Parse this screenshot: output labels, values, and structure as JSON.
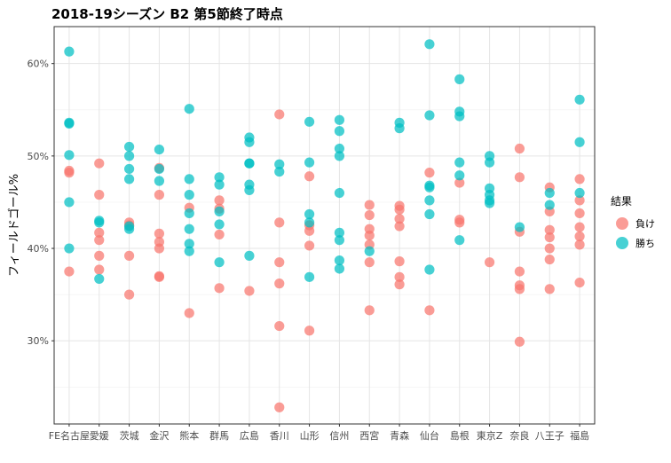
{
  "chart_data": {
    "type": "scatter",
    "title": "2018-19シーズン B2 第5節終了時点",
    "xlabel": "",
    "ylabel": "フィールドゴール%",
    "y_ticks": [
      30,
      40,
      50,
      60
    ],
    "y_tick_labels": [
      "30%",
      "40%",
      "50%",
      "60%"
    ],
    "ylim": [
      21,
      64
    ],
    "grid": true,
    "legend_position": "right",
    "legend_title": "結果",
    "categories": [
      "FE名古屋",
      "愛媛",
      "茨城",
      "金沢",
      "熊本",
      "群馬",
      "広島",
      "香川",
      "山形",
      "信州",
      "西宮",
      "青森",
      "仙台",
      "島根",
      "東京Z",
      "奈良",
      "八王子",
      "福島"
    ],
    "series": [
      {
        "name": "負け",
        "color": "#F8766D",
        "points": [
          [
            "FE名古屋",
            48.4
          ],
          [
            "FE名古屋",
            48.2
          ],
          [
            "FE名古屋",
            37.5
          ],
          [
            "愛媛",
            49.2
          ],
          [
            "愛媛",
            45.8
          ],
          [
            "愛媛",
            41.7
          ],
          [
            "愛媛",
            40.9
          ],
          [
            "愛媛",
            39.2
          ],
          [
            "愛媛",
            37.7
          ],
          [
            "茨城",
            42.8
          ],
          [
            "茨城",
            42.5
          ],
          [
            "茨城",
            39.2
          ],
          [
            "茨城",
            35.0
          ],
          [
            "金沢",
            48.7
          ],
          [
            "金沢",
            45.8
          ],
          [
            "金沢",
            41.6
          ],
          [
            "金沢",
            40.7
          ],
          [
            "金沢",
            40.0
          ],
          [
            "金沢",
            37.0
          ],
          [
            "金沢",
            36.9
          ],
          [
            "熊本",
            44.4
          ],
          [
            "熊本",
            33.0
          ],
          [
            "群馬",
            45.2
          ],
          [
            "群馬",
            44.3
          ],
          [
            "群馬",
            41.5
          ],
          [
            "群馬",
            35.7
          ],
          [
            "広島",
            35.4
          ],
          [
            "香川",
            54.5
          ],
          [
            "香川",
            42.8
          ],
          [
            "香川",
            38.5
          ],
          [
            "香川",
            36.2
          ],
          [
            "香川",
            31.6
          ],
          [
            "香川",
            22.8
          ],
          [
            "山形",
            47.8
          ],
          [
            "山形",
            42.5
          ],
          [
            "山形",
            41.9
          ],
          [
            "山形",
            40.3
          ],
          [
            "山形",
            31.1
          ],
          [
            "西宮",
            44.7
          ],
          [
            "西宮",
            43.6
          ],
          [
            "西宮",
            42.1
          ],
          [
            "西宮",
            41.4
          ],
          [
            "西宮",
            40.4
          ],
          [
            "西宮",
            38.5
          ],
          [
            "西宮",
            33.3
          ],
          [
            "青森",
            44.6
          ],
          [
            "青森",
            44.2
          ],
          [
            "青森",
            43.2
          ],
          [
            "青森",
            42.4
          ],
          [
            "青森",
            38.6
          ],
          [
            "青森",
            36.9
          ],
          [
            "青森",
            36.1
          ],
          [
            "仙台",
            48.2
          ],
          [
            "仙台",
            33.3
          ],
          [
            "島根",
            47.1
          ],
          [
            "島根",
            43.1
          ],
          [
            "島根",
            42.8
          ],
          [
            "東京Z",
            38.5
          ],
          [
            "奈良",
            50.8
          ],
          [
            "奈良",
            47.7
          ],
          [
            "奈良",
            41.8
          ],
          [
            "奈良",
            37.5
          ],
          [
            "奈良",
            36.0
          ],
          [
            "奈良",
            35.6
          ],
          [
            "奈良",
            29.9
          ],
          [
            "八王子",
            46.6
          ],
          [
            "八王子",
            44.0
          ],
          [
            "八王子",
            42.0
          ],
          [
            "八王子",
            41.2
          ],
          [
            "八王子",
            40.0
          ],
          [
            "八王子",
            38.8
          ],
          [
            "八王子",
            35.6
          ],
          [
            "福島",
            47.5
          ],
          [
            "福島",
            45.2
          ],
          [
            "福島",
            43.8
          ],
          [
            "福島",
            42.3
          ],
          [
            "福島",
            41.3
          ],
          [
            "福島",
            40.4
          ],
          [
            "福島",
            36.3
          ]
        ]
      },
      {
        "name": "勝ち",
        "color": "#00BFC4",
        "points": [
          [
            "FE名古屋",
            61.3
          ],
          [
            "FE名古屋",
            53.6
          ],
          [
            "FE名古屋",
            53.5
          ],
          [
            "FE名古屋",
            50.1
          ],
          [
            "FE名古屋",
            45.0
          ],
          [
            "FE名古屋",
            40.0
          ],
          [
            "愛媛",
            43.0
          ],
          [
            "愛媛",
            42.8
          ],
          [
            "愛媛",
            36.7
          ],
          [
            "茨城",
            51.0
          ],
          [
            "茨城",
            50.0
          ],
          [
            "茨城",
            48.6
          ],
          [
            "茨城",
            47.5
          ],
          [
            "茨城",
            42.4
          ],
          [
            "茨城",
            42.1
          ],
          [
            "金沢",
            50.7
          ],
          [
            "金沢",
            48.6
          ],
          [
            "金沢",
            47.3
          ],
          [
            "熊本",
            55.1
          ],
          [
            "熊本",
            47.5
          ],
          [
            "熊本",
            45.8
          ],
          [
            "熊本",
            43.8
          ],
          [
            "熊本",
            42.1
          ],
          [
            "熊本",
            40.5
          ],
          [
            "熊本",
            39.7
          ],
          [
            "群馬",
            47.7
          ],
          [
            "群馬",
            46.9
          ],
          [
            "群馬",
            44.0
          ],
          [
            "群馬",
            42.6
          ],
          [
            "群馬",
            38.5
          ],
          [
            "広島",
            52.0
          ],
          [
            "広島",
            51.5
          ],
          [
            "広島",
            49.2
          ],
          [
            "広島",
            49.2
          ],
          [
            "広島",
            46.9
          ],
          [
            "広島",
            46.3
          ],
          [
            "広島",
            39.2
          ],
          [
            "香川",
            49.1
          ],
          [
            "香川",
            48.3
          ],
          [
            "山形",
            53.7
          ],
          [
            "山形",
            49.3
          ],
          [
            "山形",
            43.7
          ],
          [
            "山形",
            42.8
          ],
          [
            "山形",
            36.9
          ],
          [
            "信州",
            53.9
          ],
          [
            "信州",
            52.7
          ],
          [
            "信州",
            50.8
          ],
          [
            "信州",
            50.0
          ],
          [
            "信州",
            46.0
          ],
          [
            "信州",
            41.7
          ],
          [
            "信州",
            40.9
          ],
          [
            "信州",
            38.7
          ],
          [
            "信州",
            37.8
          ],
          [
            "西宮",
            39.7
          ],
          [
            "青森",
            53.6
          ],
          [
            "青森",
            53.0
          ],
          [
            "仙台",
            62.1
          ],
          [
            "仙台",
            54.4
          ],
          [
            "仙台",
            46.8
          ],
          [
            "仙台",
            46.6
          ],
          [
            "仙台",
            45.2
          ],
          [
            "仙台",
            43.7
          ],
          [
            "仙台",
            37.7
          ],
          [
            "島根",
            58.3
          ],
          [
            "島根",
            54.8
          ],
          [
            "島根",
            54.3
          ],
          [
            "島根",
            49.3
          ],
          [
            "島根",
            47.9
          ],
          [
            "島根",
            40.9
          ],
          [
            "東京Z",
            50.0
          ],
          [
            "東京Z",
            49.3
          ],
          [
            "東京Z",
            46.5
          ],
          [
            "東京Z",
            45.8
          ],
          [
            "東京Z",
            45.2
          ],
          [
            "東京Z",
            44.9
          ],
          [
            "奈良",
            42.3
          ],
          [
            "八王子",
            46.0
          ],
          [
            "八王子",
            44.7
          ],
          [
            "福島",
            56.1
          ],
          [
            "福島",
            51.5
          ],
          [
            "福島",
            46.0
          ]
        ]
      }
    ]
  }
}
